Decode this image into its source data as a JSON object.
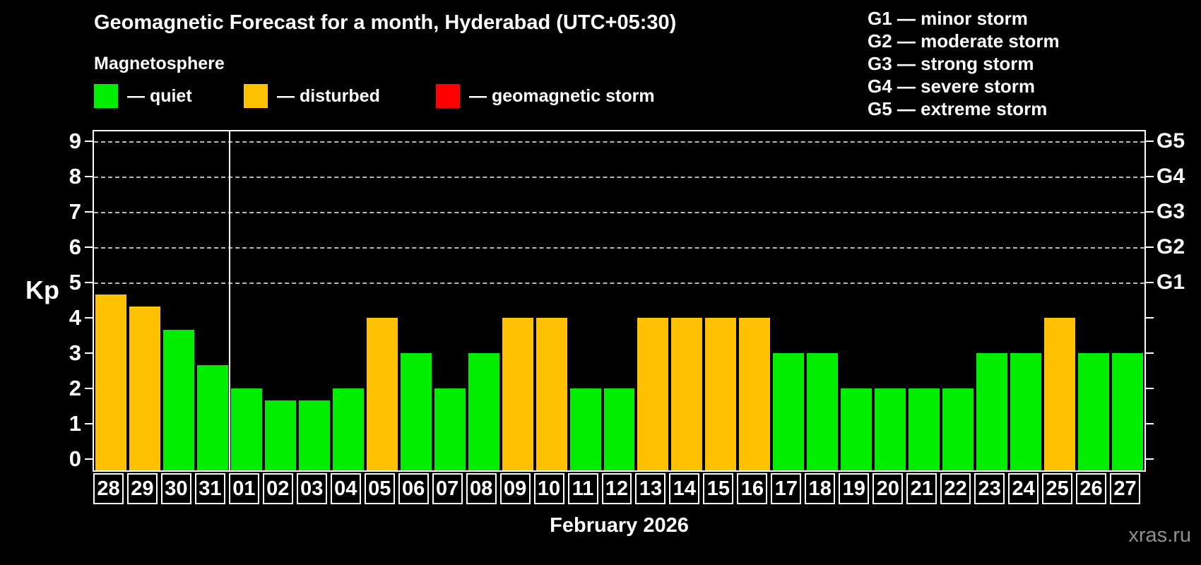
{
  "title": "Geomagnetic Forecast for a month, Hyderabad (UTC+05:30)",
  "subtitle": "Magnetosphere",
  "legend": {
    "items": [
      {
        "name": "quiet",
        "label": "— quiet",
        "color": "#00ee00"
      },
      {
        "name": "disturbed",
        "label": "— disturbed",
        "color": "#ffc200"
      },
      {
        "name": "storm",
        "label": "— geomagnetic storm",
        "color": "#ff0000"
      }
    ]
  },
  "storm_legend": {
    "items": [
      {
        "label": "G1 — minor storm"
      },
      {
        "label": "G2 — moderate storm"
      },
      {
        "label": "G3 — strong storm"
      },
      {
        "label": "G4 — severe storm"
      },
      {
        "label": "G5 — extreme storm"
      }
    ]
  },
  "watermark": "xras.ru",
  "chart_data": {
    "type": "bar",
    "title": "Geomagnetic Forecast for a month, Hyderabad (UTC+05:30)",
    "xlabel": "February 2026",
    "ylabel": "Kp",
    "ylim": [
      0,
      9
    ],
    "yticks": [
      0,
      1,
      2,
      3,
      4,
      5,
      6,
      7,
      8,
      9
    ],
    "gridlines_at": [
      5,
      6,
      7,
      8,
      9
    ],
    "grid": true,
    "right_axis_labels": [
      {
        "kp": 5,
        "label": "G1"
      },
      {
        "kp": 6,
        "label": "G2"
      },
      {
        "kp": 7,
        "label": "G3"
      },
      {
        "kp": 8,
        "label": "G4"
      },
      {
        "kp": 9,
        "label": "G5"
      }
    ],
    "month_separator_after_index": 3,
    "categories": [
      "28",
      "29",
      "30",
      "31",
      "01",
      "02",
      "03",
      "04",
      "05",
      "06",
      "07",
      "08",
      "09",
      "10",
      "11",
      "12",
      "13",
      "14",
      "15",
      "16",
      "17",
      "18",
      "19",
      "20",
      "21",
      "22",
      "23",
      "24",
      "25",
      "26",
      "27"
    ],
    "values": [
      4.67,
      4.33,
      3.67,
      2.67,
      2,
      1.67,
      1.67,
      2,
      4,
      3,
      2,
      3,
      4,
      4,
      2,
      2,
      4,
      4,
      4,
      4,
      3,
      3,
      2,
      2,
      2,
      2,
      3,
      3,
      4,
      3,
      3
    ],
    "statuses": [
      "disturbed",
      "disturbed",
      "quiet",
      "quiet",
      "quiet",
      "quiet",
      "quiet",
      "quiet",
      "disturbed",
      "quiet",
      "quiet",
      "quiet",
      "disturbed",
      "disturbed",
      "quiet",
      "quiet",
      "disturbed",
      "disturbed",
      "disturbed",
      "disturbed",
      "quiet",
      "quiet",
      "quiet",
      "quiet",
      "quiet",
      "quiet",
      "quiet",
      "quiet",
      "disturbed",
      "quiet",
      "quiet"
    ],
    "colors": {
      "quiet": "#00ee00",
      "disturbed": "#ffc200",
      "storm": "#ff0000"
    }
  }
}
